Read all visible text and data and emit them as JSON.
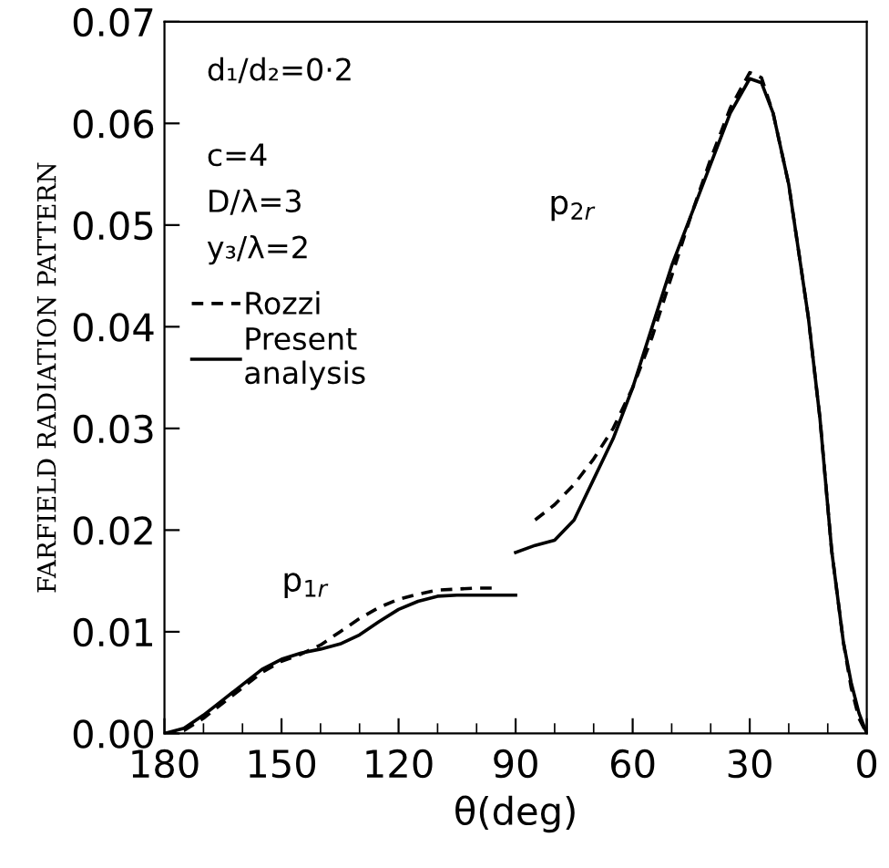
{
  "chart_data": {
    "type": "line",
    "xlabel": "θ(deg)",
    "ylabel": "FARFIELD RADIATION PATTERN",
    "xlim": [
      180,
      0
    ],
    "xticks": [
      180,
      150,
      120,
      90,
      60,
      30,
      0
    ],
    "ylim": [
      0,
      0.07
    ],
    "yticks": [
      {
        "value": 0,
        "label": "0.00"
      },
      {
        "value": 0.01,
        "label": "0.01"
      },
      {
        "value": 0.02,
        "label": "0.02"
      },
      {
        "value": 0.03,
        "label": "0.03"
      },
      {
        "value": 0.04,
        "label": "0.04"
      },
      {
        "value": 0.05,
        "label": "0.05"
      },
      {
        "value": 0.06,
        "label": "0.06"
      },
      {
        "value": 0.07,
        "label": "0.07"
      }
    ],
    "grid": false,
    "legend": "top left",
    "marker": "none",
    "annotations": [
      "d₁/d₂=0·2",
      "c=4",
      "D/λ=3",
      "y₃/λ=2",
      "p$_{1r}$",
      "p$_{2r}$"
    ],
    "series": [
      {
        "name": "Rozzi",
        "color": "#000000",
        "line_style": "dashed",
        "x": [
          180,
          175,
          170,
          165,
          160,
          155,
          150,
          145,
          140,
          135,
          130,
          125,
          120,
          115,
          110,
          100,
          95
        ],
        "values": [
          0,
          0.0003,
          0.0015,
          0.003,
          0.0045,
          0.006,
          0.0071,
          0.0078,
          0.0087,
          0.01,
          0.0113,
          0.0124,
          0.0132,
          0.0137,
          0.0141,
          0.0143,
          0.0143
        ]
      },
      {
        "color": "#000000",
        "line_style": "dashed",
        "x": [
          85,
          80,
          75,
          70,
          65,
          60,
          55,
          50,
          45,
          40,
          35,
          30,
          27,
          24,
          20,
          15,
          12,
          9,
          6,
          4,
          2,
          0
        ],
        "values": [
          0.021,
          0.0225,
          0.0245,
          0.027,
          0.03,
          0.034,
          0.039,
          0.045,
          0.051,
          0.0565,
          0.0615,
          0.065,
          0.0645,
          0.061,
          0.054,
          0.041,
          0.031,
          0.018,
          0.009,
          0.0045,
          0.0015,
          0
        ]
      },
      {
        "name": "Present\nanalysis",
        "color": "#000000",
        "line_style": "solid",
        "x": [
          180,
          175,
          170,
          165,
          160,
          155,
          150,
          145,
          140,
          135,
          130,
          125,
          120,
          115,
          110,
          105,
          100,
          90
        ],
        "values": [
          0,
          0.0005,
          0.0018,
          0.0033,
          0.0048,
          0.0063,
          0.0073,
          0.0079,
          0.0083,
          0.0088,
          0.0097,
          0.011,
          0.0122,
          0.013,
          0.0135,
          0.0136,
          0.0136,
          0.0136
        ]
      },
      {
        "color": "#000000",
        "line_style": "solid",
        "x": [
          90,
          85,
          80,
          75,
          70,
          65,
          60,
          55,
          50,
          45,
          40,
          35,
          30,
          27,
          24,
          20,
          15,
          12,
          9,
          6,
          4,
          2,
          0
        ],
        "values": [
          0.0178,
          0.0185,
          0.019,
          0.021,
          0.025,
          0.029,
          0.034,
          0.04,
          0.046,
          0.051,
          0.056,
          0.061,
          0.0644,
          0.064,
          0.061,
          0.054,
          0.041,
          0.031,
          0.018,
          0.009,
          0.005,
          0.002,
          0
        ]
      }
    ]
  }
}
